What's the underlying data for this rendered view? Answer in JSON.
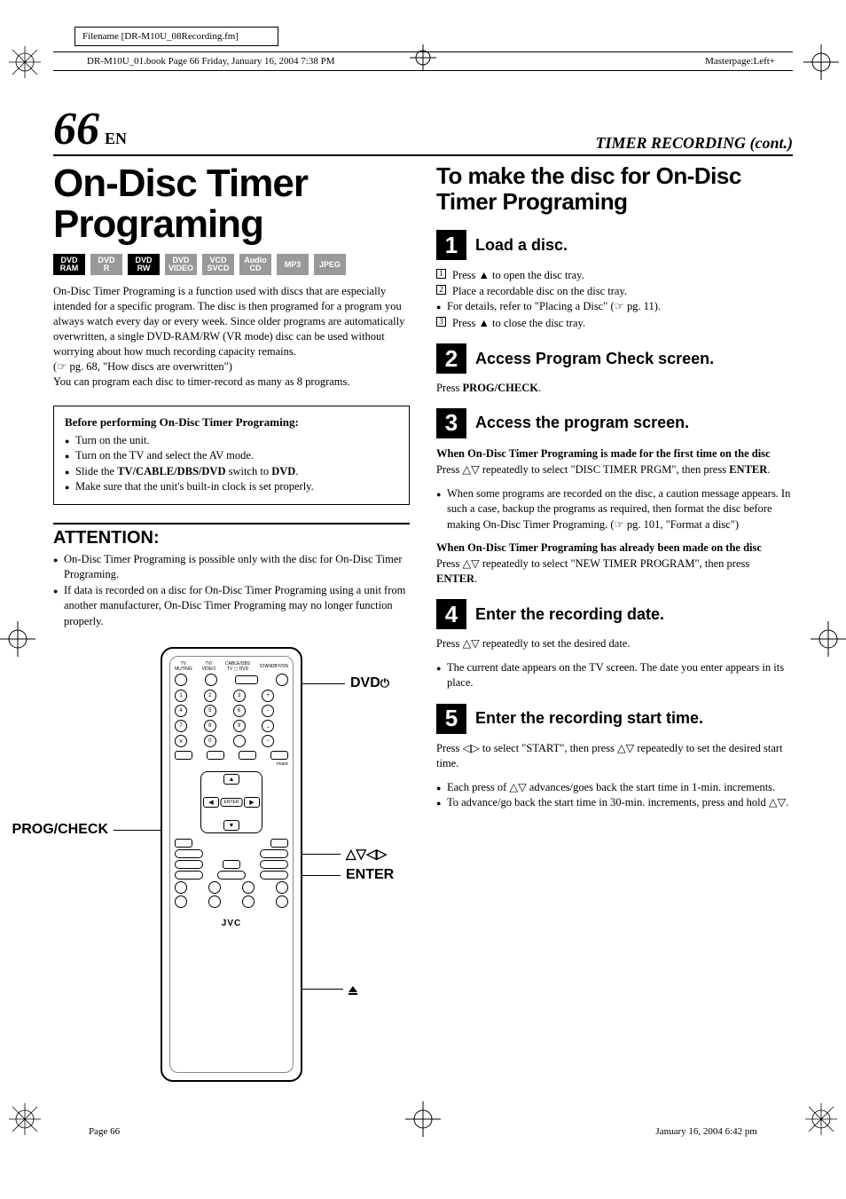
{
  "meta": {
    "filename_label": "Filename [DR-M10U_08Recording.fm]",
    "book_line": "DR-M10U_01.book  Page 66  Friday, January 16, 2004  7:38 PM",
    "masterpage": "Masterpage:Left+",
    "footer_page": "Page 66",
    "footer_date": "January 16, 2004 6:42 pm"
  },
  "header": {
    "page_number": "66",
    "lang": "EN",
    "section_title": "TIMER RECORDING (cont.)"
  },
  "left": {
    "main_title": "On-Disc Timer Programing",
    "badges": [
      {
        "line1": "DVD",
        "line2": "RAM",
        "active": true
      },
      {
        "line1": "DVD",
        "line2": "R",
        "active": false
      },
      {
        "line1": "DVD",
        "line2": "RW",
        "active": true
      },
      {
        "line1": "DVD",
        "line2": "VIDEO",
        "active": false
      },
      {
        "line1": "VCD",
        "line2": "SVCD",
        "active": false
      },
      {
        "line1": "Audio",
        "line2": "CD",
        "active": false
      },
      {
        "line1": "MP3",
        "line2": "",
        "active": false
      },
      {
        "line1": "JPEG",
        "line2": "",
        "active": false
      }
    ],
    "intro1": "On-Disc Timer Programing is a function used with discs that are especially intended for a specific program. The disc is then programed for a program you always watch every day or every week. Since older programs are automatically overwritten, a single DVD-RAM/RW (VR mode) disc can be used without worrying about how much recording capacity remains.",
    "intro_ref": "(☞ pg. 68, \"How discs are overwritten\")",
    "intro2": "You can program each disc to timer-record as many as 8 programs.",
    "before_title": "Before performing On-Disc Timer Programing:",
    "before_items": [
      "Turn on the unit.",
      "Turn on the TV and select the AV mode.",
      "Slide the <b>TV/CABLE/DBS/DVD</b> switch to <b>DVD</b>.",
      "Make sure that the unit's built-in clock is set properly."
    ],
    "attention_title": "ATTENTION:",
    "attention_items": [
      "On-Disc Timer Programing is possible only with the disc for On-Disc Timer Programing.",
      "If data is recorded on a disc for On-Disc Timer Programing using a unit from another manufacturer, On-Disc Timer Programing may no longer function properly."
    ],
    "callouts": {
      "progcheck": "PROG/CHECK",
      "dvd": "DVD",
      "arrows": "△▽◁▷",
      "enter": "ENTER",
      "eject": "▲"
    },
    "remote_brand": "JVC"
  },
  "right": {
    "subtitle": "To make the disc for On-Disc Timer Programing",
    "step1": {
      "num": "1",
      "title": "Load a disc.",
      "li1": "Press ▲ to open the disc tray.",
      "li2": "Place a recordable disc on the disc tray.",
      "note": "For details, refer to \"Placing a Disc\" (☞ pg. 11).",
      "li3": "Press ▲ to close the disc tray."
    },
    "step2": {
      "num": "2",
      "title": "Access Program Check screen.",
      "text": "Press <b>PROG/CHECK</b>."
    },
    "step3": {
      "num": "3",
      "title": "Access the program screen.",
      "sub1_head": "When On-Disc Timer Programing is made for the first time on the disc",
      "sub1_text": "Press △▽ repeatedly to select \"DISC TIMER PRGM\", then press <b>ENTER</b>.",
      "sub1_note": "When some programs are recorded on the disc, a caution message appears. In such a case, backup the programs as required, then format the disc before making On-Disc Timer Programing. (☞ pg. 101, \"Format a disc\")",
      "sub2_head": "When On-Disc Timer Programing has already been made on the disc",
      "sub2_text": "Press △▽ repeatedly to select \"NEW TIMER PROGRAM\", then press <b>ENTER</b>."
    },
    "step4": {
      "num": "4",
      "title": "Enter the recording date.",
      "text": "Press △▽ repeatedly to set the desired date.",
      "note": "The current date appears on the TV screen. The date you enter appears in its place."
    },
    "step5": {
      "num": "5",
      "title": "Enter the recording start time.",
      "text": "Press ◁▷ to select \"START\", then press △▽ repeatedly to set the desired start time.",
      "note1": "Each press of △▽ advances/goes back the start time in 1-min. increments.",
      "note2": "To advance/go back the start time in 30-min. increments, press and hold △▽."
    }
  }
}
